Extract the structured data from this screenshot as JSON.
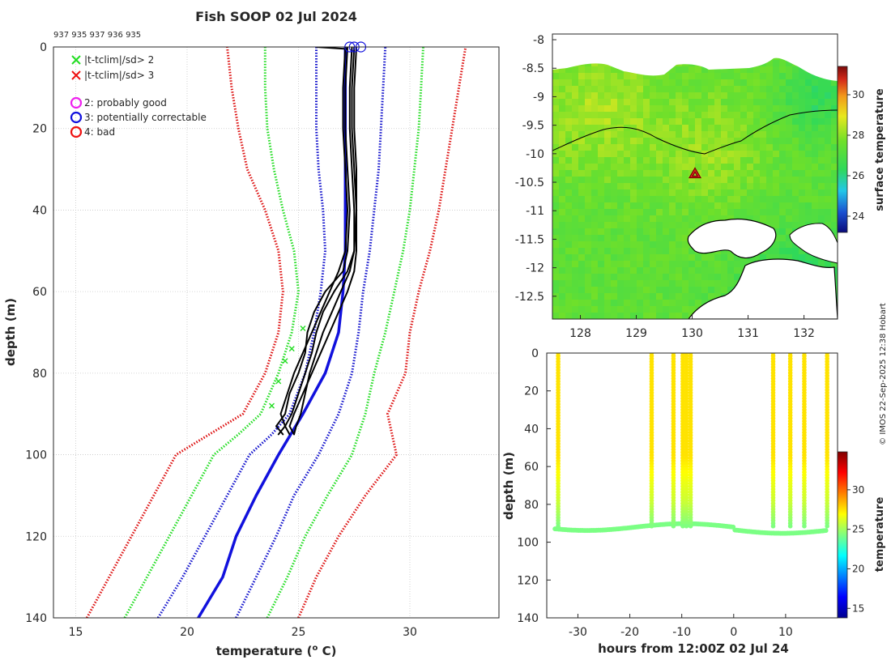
{
  "chart_data": [
    {
      "type": "line",
      "title": "Fish SOOP 02 Jul 2024",
      "subtitle": "937 935 937 936 935",
      "xlabel": "temperature (",
      "xlabel_sup": "o",
      "xlabel_end": " C)",
      "ylabel": "depth (m)",
      "xlim": [
        14,
        34
      ],
      "ylim": [
        140,
        0
      ],
      "xticks": [
        "15",
        "20",
        "25",
        "30"
      ],
      "yticks": [
        "0",
        "20",
        "40",
        "60",
        "80",
        "100",
        "120",
        "140"
      ],
      "grid": true,
      "legend": [
        {
          "marker": "x",
          "color": "#22dd22",
          "label": "|t-tclim|/sd> 2"
        },
        {
          "marker": "x",
          "color": "#ee1111",
          "label": "|t-tclim|/sd> 3"
        },
        {
          "marker": "o",
          "color": "#ee22ee",
          "label": "2: probably good"
        },
        {
          "marker": "o",
          "color": "#1111dd",
          "label": "3: potentially correctable"
        },
        {
          "marker": "o",
          "color": "#ee1111",
          "label": "4: bad"
        }
      ],
      "series": [
        {
          "name": "clim-3sd-left",
          "color": "#dd1111",
          "style": "dotted",
          "depth": [
            140,
            130,
            120,
            110,
            100,
            95,
            90,
            80,
            70,
            60,
            50,
            40,
            30,
            20,
            10,
            0
          ],
          "temp": [
            15.5,
            16.5,
            17.5,
            18.5,
            19.5,
            21,
            22.5,
            23.5,
            24.1,
            24.3,
            24.1,
            23.5,
            22.7,
            22.3,
            22.0,
            21.8
          ]
        },
        {
          "name": "clim-2sd-left",
          "color": "#22dd22",
          "style": "dotted",
          "depth": [
            140,
            130,
            120,
            110,
            100,
            95,
            90,
            80,
            70,
            60,
            50,
            40,
            30,
            20,
            10,
            0
          ],
          "temp": [
            17.2,
            18.2,
            19.2,
            20.2,
            21.2,
            22.3,
            23.3,
            24.1,
            24.7,
            25.0,
            24.8,
            24.3,
            23.9,
            23.6,
            23.5,
            23.5
          ]
        },
        {
          "name": "clim-1sd-left",
          "color": "#1111cc",
          "style": "dotted",
          "depth": [
            140,
            130,
            120,
            110,
            100,
            95,
            90,
            80,
            70,
            60,
            50,
            40,
            30,
            20,
            10,
            0
          ],
          "temp": [
            18.7,
            19.8,
            20.8,
            21.8,
            22.8,
            23.8,
            24.6,
            25.3,
            25.7,
            26.0,
            26.2,
            26.1,
            25.9,
            25.8,
            25.8,
            25.8
          ]
        },
        {
          "name": "clim-mean",
          "color": "#1111dd",
          "style": "solid",
          "depth": [
            140,
            130,
            120,
            110,
            100,
            90,
            80,
            70,
            60,
            50,
            40,
            30,
            20,
            10,
            0
          ],
          "temp": [
            20.5,
            21.6,
            22.2,
            23.1,
            24.1,
            25.2,
            26.2,
            26.8,
            27.0,
            27.1,
            27.1,
            27.1,
            27.1,
            27.1,
            27.1
          ]
        },
        {
          "name": "clim-1sd-right",
          "color": "#1111cc",
          "style": "dotted",
          "depth": [
            140,
            130,
            120,
            110,
            100,
            90,
            80,
            70,
            60,
            50,
            40,
            30,
            20,
            10,
            0
          ],
          "temp": [
            22.2,
            23.1,
            24.0,
            24.8,
            25.9,
            26.8,
            27.4,
            27.7,
            27.9,
            28.2,
            28.4,
            28.6,
            28.7,
            28.8,
            28.9
          ]
        },
        {
          "name": "clim-2sd-right",
          "color": "#22dd22",
          "style": "dotted",
          "depth": [
            140,
            130,
            120,
            110,
            100,
            90,
            80,
            70,
            60,
            50,
            40,
            30,
            20,
            10,
            0
          ],
          "temp": [
            23.6,
            24.5,
            25.3,
            26.3,
            27.4,
            28.0,
            28.4,
            28.9,
            29.3,
            29.7,
            30.0,
            30.2,
            30.4,
            30.5,
            30.6
          ]
        },
        {
          "name": "clim-3sd-right",
          "color": "#dd1111",
          "style": "dotted",
          "depth": [
            140,
            130,
            120,
            110,
            100,
            90,
            80,
            70,
            60,
            50,
            40,
            30,
            20,
            10,
            0
          ],
          "temp": [
            25.0,
            25.8,
            26.8,
            28.0,
            29.4,
            29.0,
            29.8,
            30.0,
            30.4,
            30.9,
            31.3,
            31.6,
            31.9,
            32.2,
            32.5
          ]
        },
        {
          "name": "profile-1",
          "color": "#000000",
          "style": "solid",
          "depth": [
            0,
            10,
            20,
            30,
            40,
            50,
            55,
            60,
            65,
            70,
            75,
            80,
            85,
            90,
            93,
            95
          ],
          "temp": [
            27.2,
            27.1,
            27.1,
            27.2,
            27.3,
            27.2,
            27.0,
            26.2,
            25.7,
            25.4,
            25.3,
            25.0,
            24.6,
            24.4,
            24.0,
            24.3
          ]
        },
        {
          "name": "profile-2",
          "color": "#000000",
          "style": "solid",
          "depth": [
            0,
            10,
            20,
            30,
            40,
            50,
            55,
            60,
            65,
            70,
            75,
            80,
            85,
            90,
            93,
            95
          ],
          "temp": [
            27.4,
            27.3,
            27.3,
            27.4,
            27.5,
            27.5,
            27.2,
            26.6,
            26.1,
            25.8,
            25.6,
            25.3,
            25.0,
            24.7,
            24.4,
            24.6
          ]
        },
        {
          "name": "profile-3",
          "color": "#000000",
          "style": "solid",
          "depth": [
            0,
            10,
            20,
            30,
            40,
            50,
            55,
            60,
            65,
            70,
            75,
            80,
            85,
            90,
            93,
            95
          ],
          "temp": [
            27.5,
            27.4,
            27.4,
            27.5,
            27.6,
            27.6,
            27.5,
            27.2,
            26.8,
            26.4,
            26.0,
            25.6,
            25.2,
            24.8,
            24.6,
            24.8
          ]
        },
        {
          "name": "profile-4",
          "color": "#000000",
          "style": "solid",
          "depth": [
            0,
            10,
            20,
            30,
            40,
            50,
            55,
            60,
            65,
            70,
            75,
            80,
            85,
            90,
            93,
            95
          ],
          "temp": [
            27.1,
            27.0,
            27.0,
            27.1,
            27.2,
            27.1,
            26.8,
            26.4,
            26.0,
            25.6,
            25.2,
            24.8,
            24.5,
            24.2,
            24.4,
            24.1
          ]
        },
        {
          "name": "profile-5",
          "color": "#000000",
          "style": "solid",
          "depth": [
            0,
            10,
            20,
            30,
            40,
            50,
            55,
            60,
            65,
            70,
            75,
            80,
            85,
            90,
            93,
            95
          ],
          "temp": [
            27.6,
            27.5,
            27.5,
            27.6,
            27.6,
            27.5,
            27.3,
            26.9,
            26.5,
            26.1,
            25.8,
            25.5,
            25.3,
            25.1,
            24.9,
            24.8
          ]
        }
      ],
      "qc_circles": [
        {
          "temp": 27.3,
          "depth": 0
        },
        {
          "temp": 27.5,
          "depth": 0
        },
        {
          "temp": 27.8,
          "depth": 0
        }
      ],
      "flag_crosses": [
        {
          "temp": 25.2,
          "depth": 69
        },
        {
          "temp": 24.7,
          "depth": 74
        },
        {
          "temp": 24.4,
          "depth": 77
        },
        {
          "temp": 24.1,
          "depth": 82
        },
        {
          "temp": 23.8,
          "depth": 88
        }
      ]
    },
    {
      "type": "heatmap",
      "title": "",
      "xlim": [
        127.5,
        132.6
      ],
      "ylim": [
        -12.9,
        -7.9
      ],
      "xticks": [
        "128",
        "129",
        "130",
        "131",
        "132"
      ],
      "yticks": [
        "-8",
        "-8.5",
        "-9",
        "-9.5",
        "-10",
        "-10.5",
        "-11",
        "-11.5",
        "-12",
        "-12.5"
      ],
      "colorbar_label": "surface temperature",
      "colorbar_ticks": [
        "24",
        "26",
        "28",
        "30"
      ],
      "colorbar_range": [
        23.2,
        31.4
      ],
      "marker": {
        "lon": 130.05,
        "lat": -10.35,
        "color": "#dd2222"
      }
    },
    {
      "type": "scatter",
      "xlabel": "hours from 12:00Z 02 Jul 24",
      "ylabel": "depth (m)",
      "xlim": [
        -36,
        20
      ],
      "ylim": [
        140,
        0
      ],
      "xticks": [
        "-30",
        "-20",
        "-10",
        "0",
        "10"
      ],
      "yticks": [
        "0",
        "20",
        "40",
        "60",
        "80",
        "100",
        "120",
        "140"
      ],
      "colorbar_label": "temperature",
      "colorbar_ticks": [
        "15",
        "20",
        "25",
        "30"
      ],
      "colorbar_range": [
        13.8,
        34.8
      ],
      "profile_hours": [
        -33.8,
        -15.8,
        -11.6,
        -9.8,
        -9.1,
        -8.3,
        7.6,
        10.9,
        13.6,
        18.0
      ],
      "bottom_depth": 92
    }
  ],
  "footer": {
    "credit": "© IMOS 22-Sep-2025 12:38 Hobart"
  }
}
